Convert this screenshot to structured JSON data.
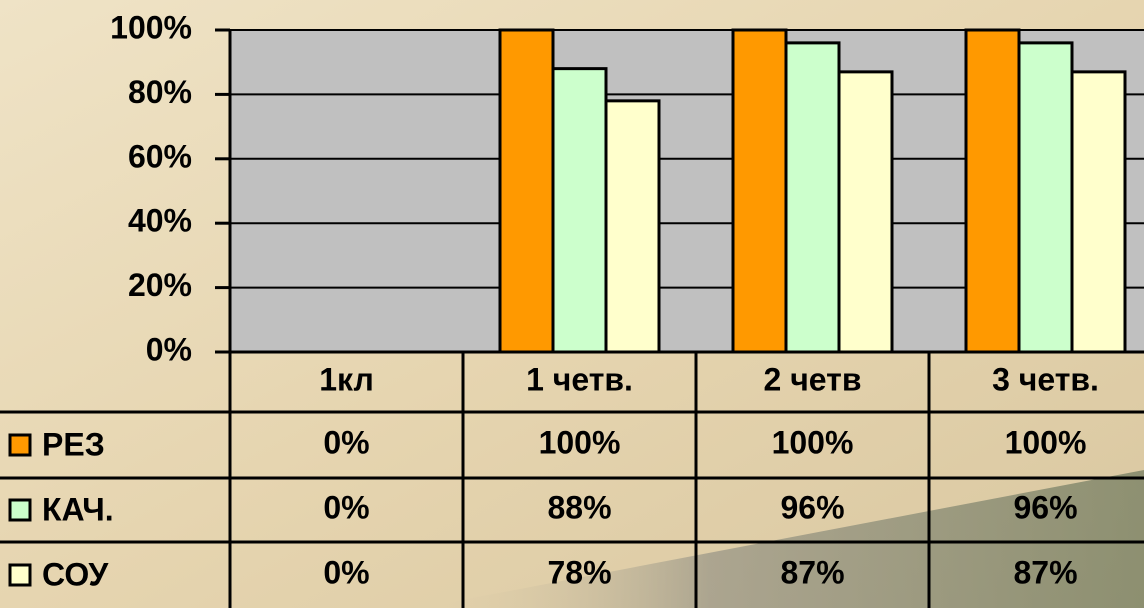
{
  "chart_data": {
    "type": "bar",
    "categories": [
      "1кл",
      "1 четв.",
      "2 четв",
      "3 четв."
    ],
    "series": [
      {
        "name": "РЕЗ",
        "color": "#ff9900",
        "values": [
          0,
          100,
          100,
          100
        ],
        "value_labels": [
          "0%",
          "100%",
          "100%",
          "100%"
        ]
      },
      {
        "name": "КАЧ.",
        "color": "#ccffcc",
        "values": [
          0,
          88,
          96,
          96
        ],
        "value_labels": [
          "0%",
          "88%",
          "96%",
          "96%"
        ]
      },
      {
        "name": "СОУ",
        "color": "#ffffcc",
        "values": [
          0,
          78,
          87,
          87
        ],
        "value_labels": [
          "0%",
          "78%",
          "87%",
          "87%"
        ]
      }
    ],
    "ylim": [
      0,
      100
    ],
    "yticks": [
      {
        "value": 0,
        "label": "0%"
      },
      {
        "value": 20,
        "label": "20%"
      },
      {
        "value": 40,
        "label": "40%"
      },
      {
        "value": 60,
        "label": "60%"
      },
      {
        "value": 80,
        "label": "80%"
      },
      {
        "value": 100,
        "label": "100%"
      }
    ],
    "grid": true
  }
}
